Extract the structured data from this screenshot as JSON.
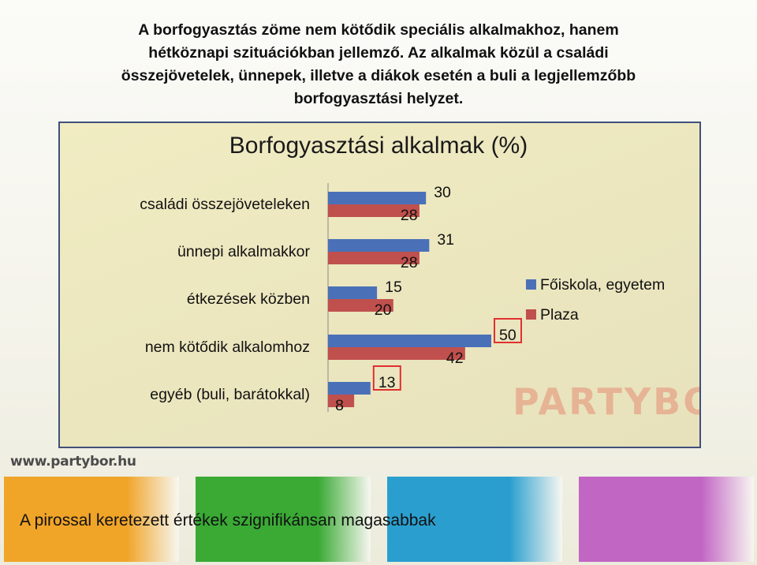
{
  "header": {
    "lines": [
      "A borfogyasztás zöme nem kötődik speciális alkalmakhoz, hanem",
      "hétköznapi szituációkban jellemző. Az alkalmak közül a családi",
      "összejövetelek, ünnepek, illetve a diákok esetén a buli a legjellemzőbb",
      "borfogyasztási helyzet."
    ]
  },
  "chart_data": {
    "type": "bar",
    "orientation": "horizontal",
    "title": "Borfogyasztási alkalmak (%)",
    "categories": [
      "családi összejöveteleken",
      "ünnepi alkalmakkor",
      "étkezések közben",
      "nem kötődik alkalomhoz",
      "egyéb (buli, barátokkal)"
    ],
    "series": [
      {
        "name": "Főiskola, egyetem",
        "color": "#4a70b8",
        "values": [
          30,
          31,
          15,
          50,
          13
        ]
      },
      {
        "name": "Plaza",
        "color": "#c0504d",
        "values": [
          28,
          28,
          20,
          42,
          8
        ]
      }
    ],
    "highlighted": [
      {
        "category": "nem kötődik alkalomhoz",
        "series": "Főiskola, egyetem"
      },
      {
        "category": "egyéb (buli, barátokkal)",
        "series": "Főiskola, egyetem"
      }
    ],
    "highlight_color": "#e03030",
    "xlim": [
      0,
      50
    ],
    "legend_position": "right",
    "grid": false
  },
  "watermark": "PARTYBOR",
  "footer": {
    "url": "www.partybor.hu",
    "note": "A pirossal keretezett értékek szignifikánsan magasabbak",
    "strip_colors": [
      "#f0a428",
      "#3aaa35",
      "#2a9fcf",
      "#c266c4"
    ]
  }
}
